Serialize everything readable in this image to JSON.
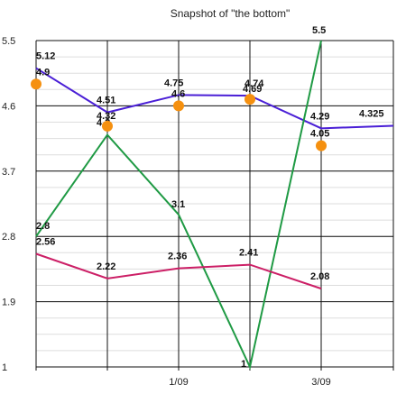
{
  "chart_data": {
    "type": "line",
    "title": "Snapshot of \"the bottom\"",
    "xlabel": "",
    "ylabel": "",
    "ylim": [
      1,
      5.5
    ],
    "y_ticks": [
      "1",
      "1.9",
      "2.8",
      "3.7",
      "4.6",
      "5.5"
    ],
    "x_tick_labels": [
      "",
      "",
      "1/09",
      "",
      "3/09",
      ""
    ],
    "grid": true,
    "series": [
      {
        "type": "line",
        "color": "#4a1fd6",
        "x": [
          0,
          1,
          2,
          3,
          4,
          5
        ],
        "values": [
          5.12,
          4.51,
          4.75,
          4.74,
          4.29,
          4.325
        ],
        "labels": [
          "5.12",
          "4.51",
          "4.75",
          "4.74",
          "4.29",
          "4.325"
        ]
      },
      {
        "type": "line",
        "color": "#1f9a44",
        "x": [
          0,
          1,
          2,
          3,
          4
        ],
        "values": [
          2.8,
          4.2,
          3.1,
          1,
          5.5
        ],
        "labels": [
          "2.8",
          "4.2",
          "3.1",
          "1",
          "5.5"
        ]
      },
      {
        "type": "line",
        "color": "#cc1f66",
        "x": [
          0,
          1,
          2,
          3,
          4
        ],
        "values": [
          2.56,
          2.22,
          2.36,
          2.41,
          2.08
        ],
        "labels": [
          "2.56",
          "2.22",
          "2.36",
          "2.41",
          "2.08"
        ]
      },
      {
        "type": "scatter",
        "color": "#f5900f",
        "x": [
          0,
          1,
          2,
          3,
          4
        ],
        "values": [
          4.9,
          4.32,
          4.6,
          4.69,
          4.05
        ],
        "labels": [
          "4.9",
          "4.32",
          "4.6",
          "4.69",
          "4.05"
        ]
      }
    ]
  }
}
